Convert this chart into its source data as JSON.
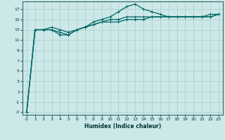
{
  "title": "",
  "xlabel": "Humidex (Indice chaleur)",
  "ylabel": "",
  "background_color": "#cce8e8",
  "grid_color": "#aacccc",
  "line_color": "#006666",
  "xlim": [
    -0.5,
    23.5
  ],
  "ylim": [
    -3.5,
    18.5
  ],
  "xticks": [
    0,
    1,
    2,
    3,
    4,
    5,
    6,
    7,
    8,
    9,
    10,
    11,
    12,
    13,
    14,
    15,
    16,
    17,
    18,
    19,
    20,
    21,
    22,
    23
  ],
  "yticks": [
    -3,
    -1,
    1,
    3,
    5,
    7,
    9,
    11,
    13,
    15,
    17
  ],
  "series": [
    {
      "x": [
        0,
        1,
        2,
        3,
        4,
        5,
        6,
        7,
        8,
        9,
        10,
        11,
        12,
        13,
        14,
        15,
        16,
        17,
        18,
        19,
        20,
        21,
        22,
        23
      ],
      "y": [
        -3,
        13,
        13,
        13,
        12,
        12,
        13,
        13.5,
        14,
        14.5,
        14.5,
        14.5,
        15,
        15,
        15,
        15.5,
        15.5,
        15.5,
        15.5,
        15.5,
        15.5,
        15.5,
        15.5,
        16
      ]
    },
    {
      "x": [
        0,
        1,
        2,
        3,
        4,
        5,
        6,
        7,
        8,
        9,
        10,
        11,
        12,
        13,
        14,
        15,
        16,
        17,
        18,
        19,
        20,
        21,
        22,
        23
      ],
      "y": [
        -3,
        13,
        13,
        13.5,
        13,
        12.5,
        13,
        13.5,
        14.5,
        15,
        15.5,
        16.5,
        17.5,
        18,
        17,
        16.5,
        16,
        15.5,
        15.5,
        15.5,
        15.5,
        15.5,
        15.5,
        16
      ]
    },
    {
      "x": [
        0,
        1,
        2,
        3,
        4,
        5,
        6,
        7,
        8,
        9,
        10,
        11,
        12,
        13,
        14,
        15,
        16,
        17,
        18,
        19,
        20,
        21,
        22,
        23
      ],
      "y": [
        -3,
        13,
        13,
        13,
        12.5,
        12,
        13,
        13.5,
        14,
        14.5,
        15,
        15,
        15.5,
        15.5,
        15.5,
        15.5,
        15.5,
        15.5,
        15.5,
        15.5,
        15.5,
        15.5,
        16,
        16
      ]
    }
  ],
  "markers": [
    {
      "x": [
        0,
        1,
        2,
        3,
        4,
        5,
        6,
        7,
        8,
        9,
        10,
        11,
        12,
        13,
        14,
        15,
        16,
        17,
        18,
        19,
        20,
        21,
        22,
        23
      ],
      "y": [
        -3,
        13,
        13,
        13,
        12,
        12,
        13,
        13.5,
        14,
        14.5,
        14.5,
        14.5,
        15,
        15,
        15,
        15.5,
        15.5,
        15.5,
        15.5,
        15.5,
        15.5,
        15.5,
        15.5,
        16
      ]
    },
    {
      "x": [
        0,
        1,
        2,
        3,
        4,
        5,
        6,
        7,
        8,
        9,
        10,
        11,
        12,
        13,
        14,
        15,
        16,
        17,
        18,
        19,
        20,
        21,
        22,
        23
      ],
      "y": [
        -3,
        13,
        13,
        13.5,
        13,
        12.5,
        13,
        13.5,
        14.5,
        15,
        15.5,
        16.5,
        17.5,
        18,
        17,
        16.5,
        16,
        15.5,
        15.5,
        15.5,
        15.5,
        15.5,
        15.5,
        16
      ]
    },
    {
      "x": [
        0,
        1,
        2,
        3,
        4,
        5,
        6,
        7,
        8,
        9,
        10,
        11,
        12,
        13,
        14,
        15,
        16,
        17,
        18,
        19,
        20,
        21,
        22,
        23
      ],
      "y": [
        -3,
        13,
        13,
        13,
        12.5,
        12,
        13,
        13.5,
        14,
        14.5,
        15,
        15,
        15.5,
        15.5,
        15.5,
        15.5,
        15.5,
        15.5,
        15.5,
        15.5,
        15.5,
        15.5,
        16,
        16
      ]
    }
  ]
}
